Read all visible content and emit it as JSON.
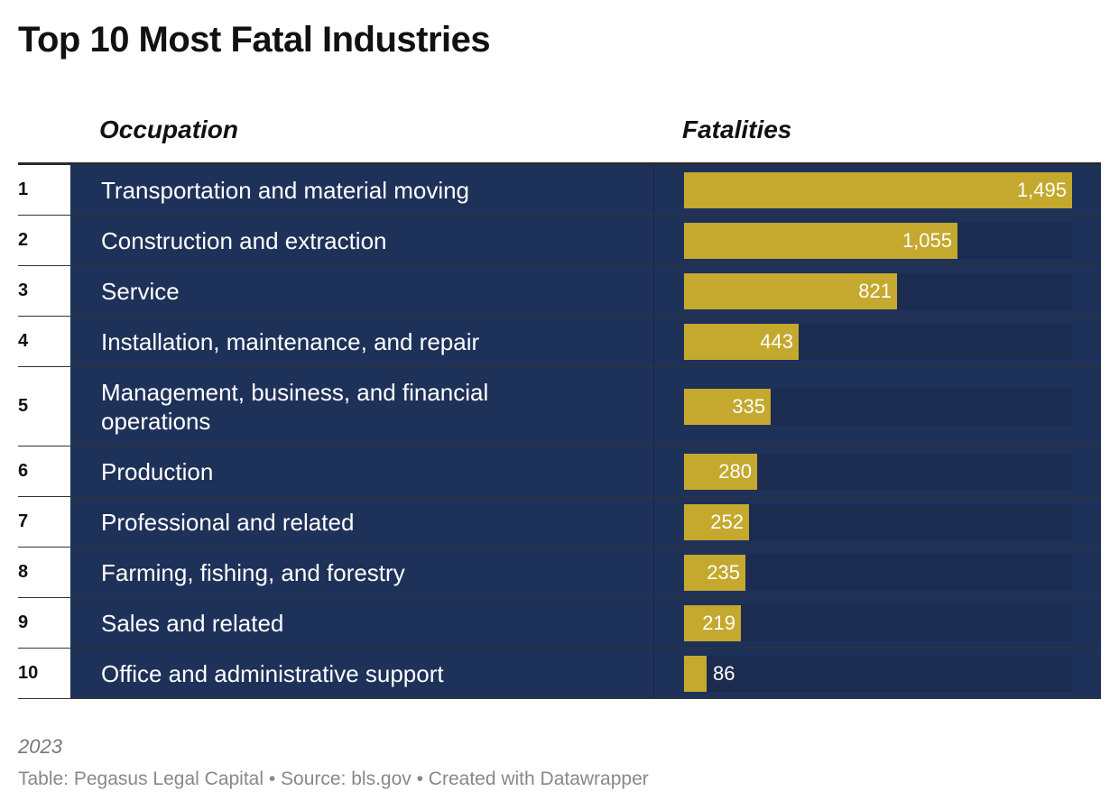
{
  "title": "Top 10 Most Fatal Industries",
  "columns": {
    "occupation": "Occupation",
    "fatalities": "Fatalities"
  },
  "colors": {
    "row_background": "#1e3159",
    "bar": "#c5a82e",
    "value_text": "#ffffff"
  },
  "chart_data": {
    "type": "bar",
    "title": "Top 10 Most Fatal Industries",
    "xlabel": "Fatalities",
    "ylabel": "Occupation",
    "xlim": [
      0,
      1495
    ],
    "ranks": [
      "1",
      "2",
      "3",
      "4",
      "5",
      "6",
      "7",
      "8",
      "9",
      "10"
    ],
    "categories": [
      "Transportation and material moving",
      "Construction and extraction",
      "Service",
      "Installation, maintenance, and repair",
      "Management, business, and financial operations",
      "Production",
      "Professional and related",
      "Farming, fishing, and forestry",
      "Sales and related",
      "Office and administrative support"
    ],
    "values": [
      1495,
      1055,
      821,
      443,
      335,
      280,
      252,
      235,
      219,
      86
    ],
    "value_labels": [
      "1,495",
      "1,055",
      "821",
      "443",
      "335",
      "280",
      "252",
      "235",
      "219",
      "86"
    ]
  },
  "footer": {
    "note": "2023",
    "source": "Table: Pegasus Legal Capital • Source: bls.gov • Created with Datawrapper"
  }
}
